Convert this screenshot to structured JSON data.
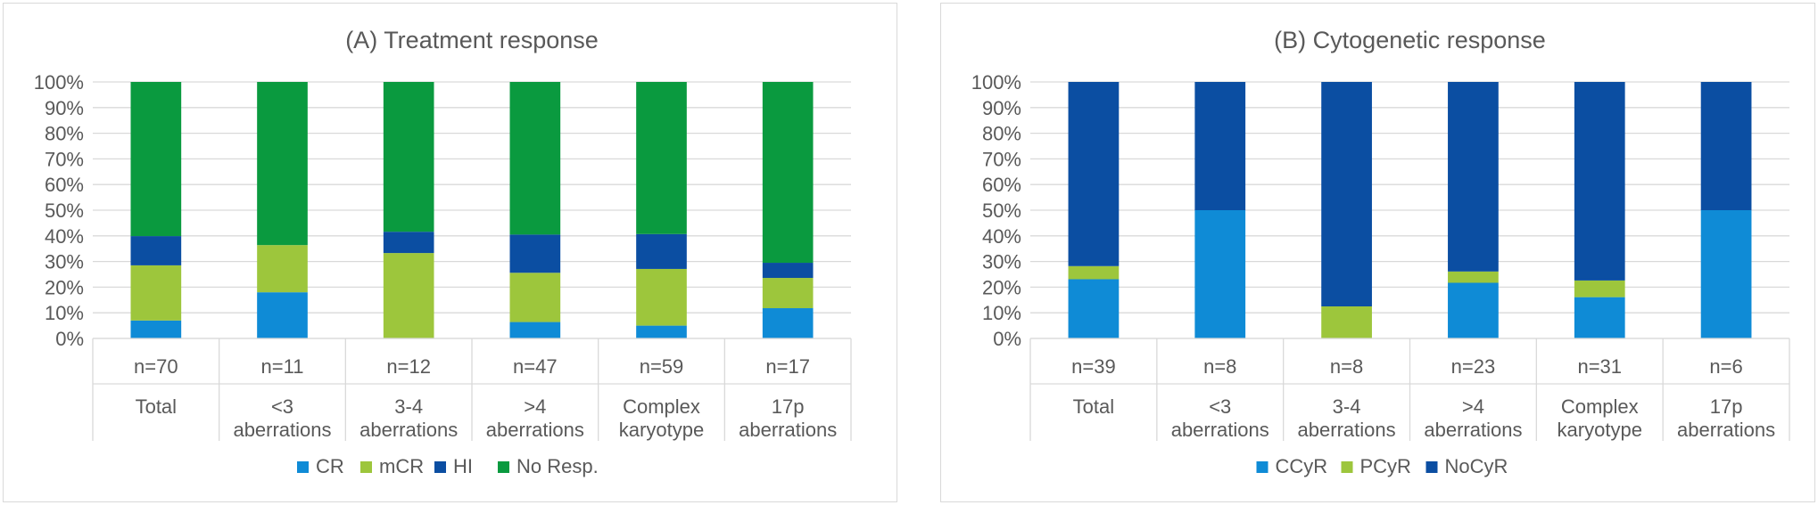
{
  "colors": {
    "CR": "#0F8BD6",
    "mCR": "#9DC63C",
    "HI": "#0B4EA2",
    "No Resp.": "#0A9A3F",
    "CCyR": "#0F8BD6",
    "PCyR": "#9DC63C",
    "NoCyR": "#0B4EA2"
  },
  "chart_data": [
    {
      "type": "bar",
      "stacked": true,
      "percent": true,
      "title": "(A) Treatment response",
      "xlabel": "",
      "ylabel": "",
      "ylim": [
        0,
        100
      ],
      "yticks": [
        "0%",
        "10%",
        "20%",
        "30%",
        "40%",
        "50%",
        "60%",
        "70%",
        "80%",
        "90%",
        "100%"
      ],
      "grid": true,
      "legend_position": "bottom",
      "categories": [
        {
          "n": "n=70",
          "label": [
            "Total"
          ]
        },
        {
          "n": "n=11",
          "label": [
            "<3",
            "aberrations"
          ]
        },
        {
          "n": "n=12",
          "label": [
            "3-4",
            "aberrations"
          ]
        },
        {
          "n": "n=47",
          "label": [
            ">4",
            "aberrations"
          ]
        },
        {
          "n": "n=59",
          "label": [
            "Complex",
            "karyotype"
          ]
        },
        {
          "n": "n=17",
          "label": [
            "17p",
            "aberrations"
          ]
        }
      ],
      "series": [
        {
          "name": "CR",
          "values": [
            7,
            18,
            0,
            6.4,
            5,
            11.8
          ]
        },
        {
          "name": "mCR",
          "values": [
            21.5,
            18.4,
            33.3,
            19.2,
            22.1,
            11.8
          ]
        },
        {
          "name": "HI",
          "values": [
            11.4,
            0,
            8.3,
            14.9,
            13.6,
            5.9
          ]
        },
        {
          "name": "No Resp.",
          "values": [
            60.1,
            63.6,
            58.4,
            59.5,
            59.3,
            70.5
          ]
        }
      ]
    },
    {
      "type": "bar",
      "stacked": true,
      "percent": true,
      "title": "(B) Cytogenetic response",
      "xlabel": "",
      "ylabel": "",
      "ylim": [
        0,
        100
      ],
      "yticks": [
        "0%",
        "10%",
        "20%",
        "30%",
        "40%",
        "50%",
        "60%",
        "70%",
        "80%",
        "90%",
        "100%"
      ],
      "grid": true,
      "legend_position": "bottom",
      "categories": [
        {
          "n": "n=39",
          "label": [
            "Total"
          ]
        },
        {
          "n": "n=8",
          "label": [
            "<3",
            "aberrations"
          ]
        },
        {
          "n": "n=8",
          "label": [
            "3-4",
            "aberrations"
          ]
        },
        {
          "n": "n=23",
          "label": [
            ">4",
            "aberrations"
          ]
        },
        {
          "n": "n=31",
          "label": [
            "Complex",
            "karyotype"
          ]
        },
        {
          "n": "n=6",
          "label": [
            "17p",
            "aberrations"
          ]
        }
      ],
      "series": [
        {
          "name": "CCyR",
          "values": [
            23.1,
            50,
            0,
            21.7,
            16.1,
            50
          ]
        },
        {
          "name": "PCyR",
          "values": [
            5.1,
            0,
            12.5,
            4.4,
            6.5,
            0
          ]
        },
        {
          "name": "NoCyR",
          "values": [
            71.8,
            50,
            87.5,
            73.9,
            77.4,
            50
          ]
        }
      ]
    }
  ]
}
